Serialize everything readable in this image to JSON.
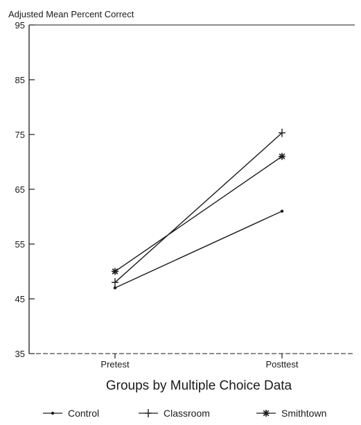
{
  "chart_data": {
    "type": "line",
    "title": "",
    "ylabel": "Adjusted Mean Percent Correct",
    "xlabel": "Groups by Multiple Choice Data",
    "categories": [
      "Pretest",
      "Posttest"
    ],
    "ylim": [
      35,
      95
    ],
    "yticks": [
      35,
      45,
      55,
      65,
      75,
      85,
      95
    ],
    "ytick_labels": [
      "35",
      "45",
      "55",
      "65",
      "75",
      "85",
      "95"
    ],
    "grid": false,
    "legend_position": "bottom",
    "series": [
      {
        "name": "Control",
        "marker": "dot",
        "values": [
          47,
          61
        ]
      },
      {
        "name": "Classroom",
        "marker": "plus",
        "values": [
          48,
          75.3
        ]
      },
      {
        "name": "Smithtown",
        "marker": "asterisk",
        "values": [
          50,
          71
        ]
      }
    ],
    "legend_labels": [
      "Control",
      "Classroom",
      "Smithtown"
    ],
    "line_color": "#1a1a1a"
  }
}
